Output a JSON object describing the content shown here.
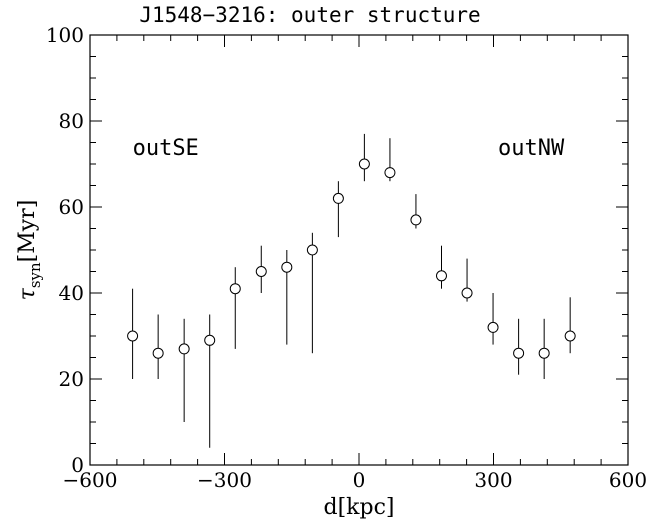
{
  "chart_data": {
    "type": "scatter",
    "title": "J1548−3216: outer structure",
    "xlabel_main": "d[kpc]",
    "ylabel": {
      "symbol": "τ",
      "subscript": "syn",
      "unit": "[Myr]"
    },
    "xlim": [
      -600,
      600
    ],
    "ylim": [
      0,
      100
    ],
    "x_ticks": [
      -600,
      -300,
      0,
      300,
      600
    ],
    "x_tick_labels": [
      "−600",
      "−300",
      "0",
      "300",
      "600"
    ],
    "y_ticks": [
      0,
      20,
      40,
      60,
      80,
      100
    ],
    "y_tick_labels": [
      "0",
      "20",
      "40",
      "60",
      "80",
      "100"
    ],
    "grid": false,
    "annotations": [
      {
        "text": "outSE",
        "x": -505,
        "y": 74
      },
      {
        "text": "outNW",
        "x": 310,
        "y": 74
      }
    ],
    "series": [
      {
        "points": [
          {
            "x": -505,
            "y": 30,
            "ylo": 20,
            "yhi": 41
          },
          {
            "x": -448,
            "y": 26,
            "ylo": 20,
            "yhi": 35
          },
          {
            "x": -390,
            "y": 27,
            "ylo": 10,
            "yhi": 34
          },
          {
            "x": -333,
            "y": 29,
            "ylo": 4,
            "yhi": 35
          },
          {
            "x": -276,
            "y": 41,
            "ylo": 27,
            "yhi": 46
          },
          {
            "x": -218,
            "y": 45,
            "ylo": 40,
            "yhi": 51
          },
          {
            "x": -161,
            "y": 46,
            "ylo": 28,
            "yhi": 50
          },
          {
            "x": -104,
            "y": 50,
            "ylo": 26,
            "yhi": 54
          },
          {
            "x": -46,
            "y": 62,
            "ylo": 53,
            "yhi": 66
          },
          {
            "x": 12,
            "y": 70,
            "ylo": 66,
            "yhi": 77
          },
          {
            "x": 69,
            "y": 68,
            "ylo": 66,
            "yhi": 76
          },
          {
            "x": 127,
            "y": 57,
            "ylo": 55,
            "yhi": 63
          },
          {
            "x": 184,
            "y": 44,
            "ylo": 41,
            "yhi": 51
          },
          {
            "x": 241,
            "y": 40,
            "ylo": 38,
            "yhi": 48
          },
          {
            "x": 299,
            "y": 32,
            "ylo": 28,
            "yhi": 40
          },
          {
            "x": 356,
            "y": 26,
            "ylo": 21,
            "yhi": 34
          },
          {
            "x": 413,
            "y": 26,
            "ylo": 20,
            "yhi": 34
          },
          {
            "x": 471,
            "y": 30,
            "ylo": 26,
            "yhi": 39
          }
        ]
      }
    ]
  }
}
